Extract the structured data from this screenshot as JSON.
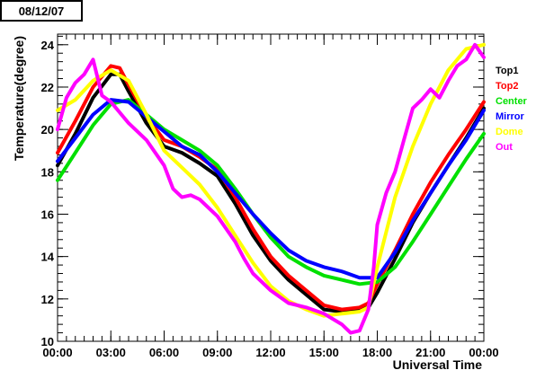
{
  "date_label": "08/12/07",
  "chart_data": {
    "type": "line",
    "title": "",
    "xlabel": "Universal Time",
    "ylabel": "Temperature(degree)",
    "xlim": [
      0,
      24
    ],
    "ylim": [
      10,
      24.5
    ],
    "x_tick_labels": [
      "00:00",
      "03:00",
      "06:00",
      "09:00",
      "12:00",
      "15:00",
      "18:00",
      "21:00",
      "00:00"
    ],
    "x_ticks": [
      0,
      3,
      6,
      9,
      12,
      15,
      18,
      21,
      24
    ],
    "y_ticks": [
      10,
      12,
      14,
      16,
      18,
      20,
      22,
      24
    ],
    "grid": false,
    "legend_placement": "right",
    "series": [
      {
        "name": "Top1",
        "color": "#000000",
        "x": [
          0,
          1,
          2,
          3,
          3.5,
          4,
          5,
          6,
          7,
          8,
          9,
          10,
          11,
          12,
          13,
          14,
          15,
          16,
          17,
          17.5,
          18,
          19,
          20,
          21,
          22,
          23,
          24
        ],
        "y": [
          18.3,
          19.8,
          21.5,
          22.6,
          22.6,
          21.8,
          20.3,
          19.2,
          18.9,
          18.4,
          17.8,
          16.5,
          15.0,
          13.8,
          12.9,
          12.2,
          11.5,
          11.4,
          11.5,
          11.6,
          12.3,
          13.9,
          15.6,
          17.0,
          18.3,
          19.6,
          21.0
        ]
      },
      {
        "name": "Top2",
        "color": "#ff0000",
        "x": [
          0,
          1,
          2,
          3,
          3.5,
          4,
          5,
          6,
          7,
          8,
          9,
          10,
          11,
          12,
          13,
          14,
          15,
          16,
          17,
          17.5,
          18,
          19,
          20,
          21,
          22,
          23,
          24
        ],
        "y": [
          18.9,
          20.4,
          22.0,
          23.0,
          22.9,
          22.1,
          20.6,
          19.5,
          19.2,
          18.7,
          18.1,
          16.8,
          15.3,
          14.0,
          13.1,
          12.4,
          11.7,
          11.5,
          11.6,
          11.8,
          12.7,
          14.3,
          16.0,
          17.5,
          18.8,
          20.0,
          21.3
        ]
      },
      {
        "name": "Center",
        "color": "#00e000",
        "x": [
          0,
          1,
          2,
          3,
          4,
          5,
          6,
          7,
          8,
          9,
          10,
          11,
          12,
          13,
          14,
          15,
          16,
          17,
          18,
          19,
          20,
          21,
          22,
          23,
          24
        ],
        "y": [
          17.6,
          18.9,
          20.2,
          21.2,
          21.4,
          20.7,
          20.0,
          19.5,
          19.0,
          18.3,
          17.2,
          16.0,
          14.9,
          14.0,
          13.5,
          13.1,
          12.9,
          12.7,
          12.8,
          13.5,
          14.7,
          16.0,
          17.3,
          18.6,
          19.8
        ]
      },
      {
        "name": "Mirror",
        "color": "#0000ff",
        "x": [
          0,
          1,
          2,
          3,
          4,
          5,
          6,
          7,
          8,
          9,
          10,
          11,
          12,
          13,
          14,
          15,
          16,
          17,
          18,
          19,
          20,
          21,
          22,
          23,
          24
        ],
        "y": [
          18.5,
          19.6,
          20.7,
          21.4,
          21.3,
          20.6,
          19.9,
          19.2,
          18.8,
          18.0,
          17.0,
          16.0,
          15.1,
          14.3,
          13.8,
          13.5,
          13.3,
          13.0,
          13.0,
          14.2,
          15.7,
          17.0,
          18.3,
          19.5,
          20.9
        ]
      },
      {
        "name": "Dome",
        "color": "#ffff00",
        "x": [
          0,
          1,
          2,
          3,
          4,
          5,
          6,
          7,
          8,
          9,
          10,
          11,
          12,
          13,
          14,
          15,
          16,
          17,
          17.5,
          18,
          19,
          20,
          21,
          22,
          23,
          24
        ],
        "y": [
          20.9,
          21.4,
          22.3,
          22.8,
          22.3,
          20.7,
          19.0,
          18.2,
          17.4,
          16.3,
          15.0,
          13.7,
          12.6,
          11.9,
          11.5,
          11.2,
          11.3,
          11.4,
          11.6,
          13.5,
          16.8,
          19.2,
          21.2,
          22.8,
          23.8,
          24.0
        ]
      },
      {
        "name": "Out",
        "color": "#ff00ff",
        "x": [
          0,
          0.5,
          1,
          1.5,
          2,
          2.5,
          3,
          4,
          5,
          6,
          6.5,
          7,
          7.5,
          8,
          9,
          10,
          10.5,
          11,
          12,
          13,
          14,
          15,
          16,
          16.5,
          17,
          17.5,
          17.8,
          18,
          18.5,
          19,
          19.5,
          20,
          20.5,
          21,
          21.5,
          22,
          22.5,
          23,
          23.5,
          24
        ],
        "y": [
          20.0,
          21.5,
          22.2,
          22.6,
          23.3,
          21.6,
          21.3,
          20.3,
          19.5,
          18.3,
          17.2,
          16.8,
          16.9,
          16.7,
          15.9,
          14.7,
          13.9,
          13.2,
          12.4,
          11.8,
          11.6,
          11.3,
          10.8,
          10.4,
          10.5,
          11.5,
          13.5,
          15.5,
          17.0,
          18.0,
          19.5,
          21.0,
          21.4,
          21.9,
          21.5,
          22.3,
          23.0,
          23.3,
          24.0,
          23.4
        ]
      }
    ]
  }
}
